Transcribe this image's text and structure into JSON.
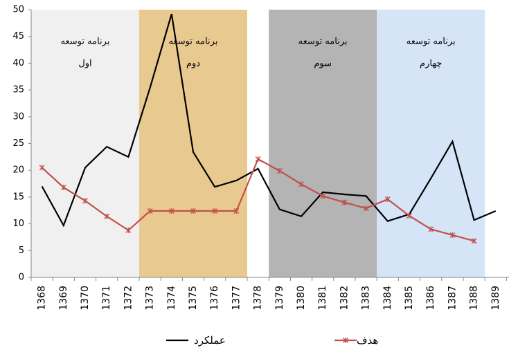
{
  "chart_data": {
    "type": "line",
    "categories": [
      "1368",
      "1369",
      "1370",
      "1371",
      "1372",
      "1373",
      "1374",
      "1375",
      "1376",
      "1377",
      "1378",
      "1379",
      "1380",
      "1381",
      "1382",
      "1383",
      "1384",
      "1385",
      "1386",
      "1387",
      "1388",
      "1389"
    ],
    "series": [
      {
        "name": "عملکرد",
        "color": "#000000",
        "values": [
          17,
          9.7,
          20.5,
          24.4,
          22.5,
          35.4,
          49.2,
          23.4,
          16.9,
          18.1,
          20.3,
          12.7,
          11.4,
          15.9,
          15.5,
          15.2,
          10.5,
          11.8,
          18.5,
          25.4,
          10.7,
          12.4
        ]
      },
      {
        "name": "هدف",
        "color": "#c0504d",
        "values": [
          20.5,
          16.8,
          14.3,
          11.4,
          8.8,
          12.4,
          12.4,
          12.4,
          12.4,
          12.4,
          22.1,
          19.9,
          17.4,
          15.2,
          14,
          12.9,
          14.6,
          11.5,
          9,
          7.9,
          6.8,
          null
        ]
      }
    ],
    "regions": [
      {
        "lines": [
          "برنامه توسعه",
          "اول"
        ],
        "start": "1368",
        "end": "1372",
        "color": "#f0f0f0"
      },
      {
        "lines": [
          "برنامه توسعه",
          "دوم"
        ],
        "start": "1373",
        "end": "1377",
        "color": "#e8c98f"
      },
      {
        "lines": [
          "برنامه توسعه",
          "سوم"
        ],
        "start": "1379",
        "end": "1383",
        "color": "#b4b4b4"
      },
      {
        "lines": [
          "برنامه توسعه",
          "چهارم"
        ],
        "start": "1384",
        "end": "1388",
        "color": "#d6e4f8"
      }
    ],
    "ylim": [
      0,
      50
    ],
    "yticks": [
      0,
      5,
      10,
      15,
      20,
      25,
      30,
      35,
      40,
      45,
      50
    ],
    "grid": false
  }
}
